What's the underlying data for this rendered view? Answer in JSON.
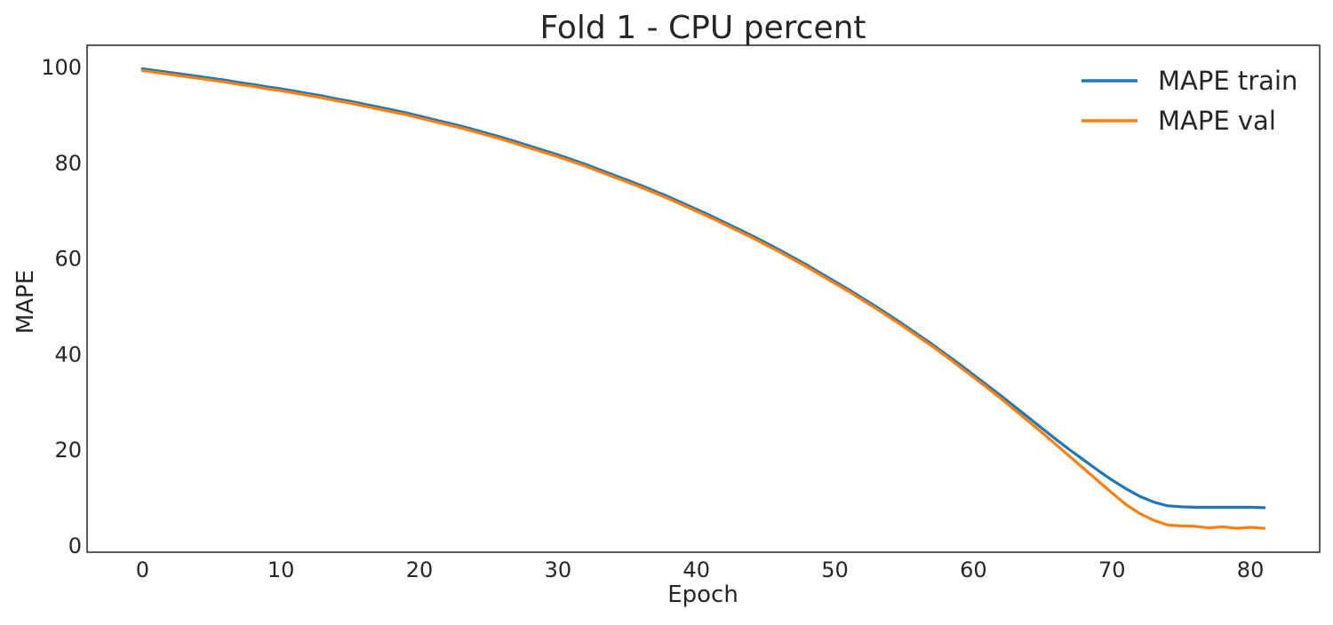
{
  "chart_data": {
    "type": "line",
    "title": "Fold 1 - CPU percent",
    "xlabel": "Epoch",
    "ylabel": "MAPE",
    "xlim": [
      -4,
      85
    ],
    "ylim": [
      -1.5,
      104.5
    ],
    "xticks": [
      0,
      10,
      20,
      30,
      40,
      50,
      60,
      70,
      80
    ],
    "yticks": [
      0,
      20,
      40,
      60,
      80,
      100
    ],
    "grid": false,
    "legend_position": "top-right",
    "x": [
      0,
      1,
      2,
      3,
      4,
      5,
      6,
      7,
      8,
      9,
      10,
      11,
      12,
      13,
      14,
      15,
      16,
      17,
      18,
      19,
      20,
      21,
      22,
      23,
      24,
      25,
      26,
      27,
      28,
      29,
      30,
      31,
      32,
      33,
      34,
      35,
      36,
      37,
      38,
      39,
      40,
      41,
      42,
      43,
      44,
      45,
      46,
      47,
      48,
      49,
      50,
      51,
      52,
      53,
      54,
      55,
      56,
      57,
      58,
      59,
      60,
      61,
      62,
      63,
      64,
      65,
      66,
      67,
      68,
      69,
      70,
      71,
      72,
      73,
      74,
      75,
      76,
      77,
      78,
      79,
      80,
      81
    ],
    "series": [
      {
        "name": "MAPE train",
        "color": "#1f77b4",
        "values": [
          99.6,
          99.2,
          98.8,
          98.4,
          98.0,
          97.6,
          97.2,
          96.7,
          96.3,
          95.8,
          95.4,
          94.9,
          94.4,
          93.9,
          93.3,
          92.8,
          92.2,
          91.6,
          91.0,
          90.4,
          89.7,
          89.0,
          88.3,
          87.6,
          86.8,
          86.0,
          85.2,
          84.3,
          83.4,
          82.5,
          81.6,
          80.6,
          79.6,
          78.5,
          77.4,
          76.3,
          75.2,
          74.0,
          72.8,
          71.5,
          70.2,
          68.9,
          67.5,
          66.1,
          64.7,
          63.2,
          61.7,
          60.1,
          58.5,
          56.8,
          55.1,
          53.4,
          51.6,
          49.8,
          47.9,
          46.0,
          44.0,
          42.0,
          39.9,
          37.8,
          35.6,
          33.4,
          31.2,
          28.9,
          26.6,
          24.3,
          22.0,
          19.8,
          17.7,
          15.6,
          13.6,
          11.8,
          10.2,
          9.0,
          8.2,
          8.0,
          7.9,
          7.9,
          7.9,
          7.9,
          7.9,
          7.8
        ]
      },
      {
        "name": "MAPE val",
        "color": "#ff7f0e",
        "values": [
          99.2,
          98.8,
          98.4,
          98.0,
          97.6,
          97.2,
          96.8,
          96.3,
          95.9,
          95.4,
          95.0,
          94.5,
          94.0,
          93.5,
          92.9,
          92.4,
          91.8,
          91.2,
          90.6,
          90.0,
          89.3,
          88.6,
          87.9,
          87.2,
          86.4,
          85.6,
          84.8,
          83.9,
          83.0,
          82.1,
          81.2,
          80.2,
          79.2,
          78.1,
          77.0,
          75.9,
          74.8,
          73.6,
          72.4,
          71.1,
          69.8,
          68.5,
          67.1,
          65.7,
          64.3,
          62.8,
          61.3,
          59.7,
          58.1,
          56.4,
          54.7,
          53.0,
          51.2,
          49.4,
          47.5,
          45.6,
          43.6,
          41.6,
          39.5,
          37.3,
          35.1,
          32.9,
          30.6,
          28.2,
          25.8,
          23.4,
          20.9,
          18.4,
          15.9,
          13.4,
          10.9,
          8.5,
          6.6,
          5.2,
          4.2,
          4.0,
          3.9,
          3.6,
          3.8,
          3.5,
          3.7,
          3.5
        ]
      }
    ]
  }
}
